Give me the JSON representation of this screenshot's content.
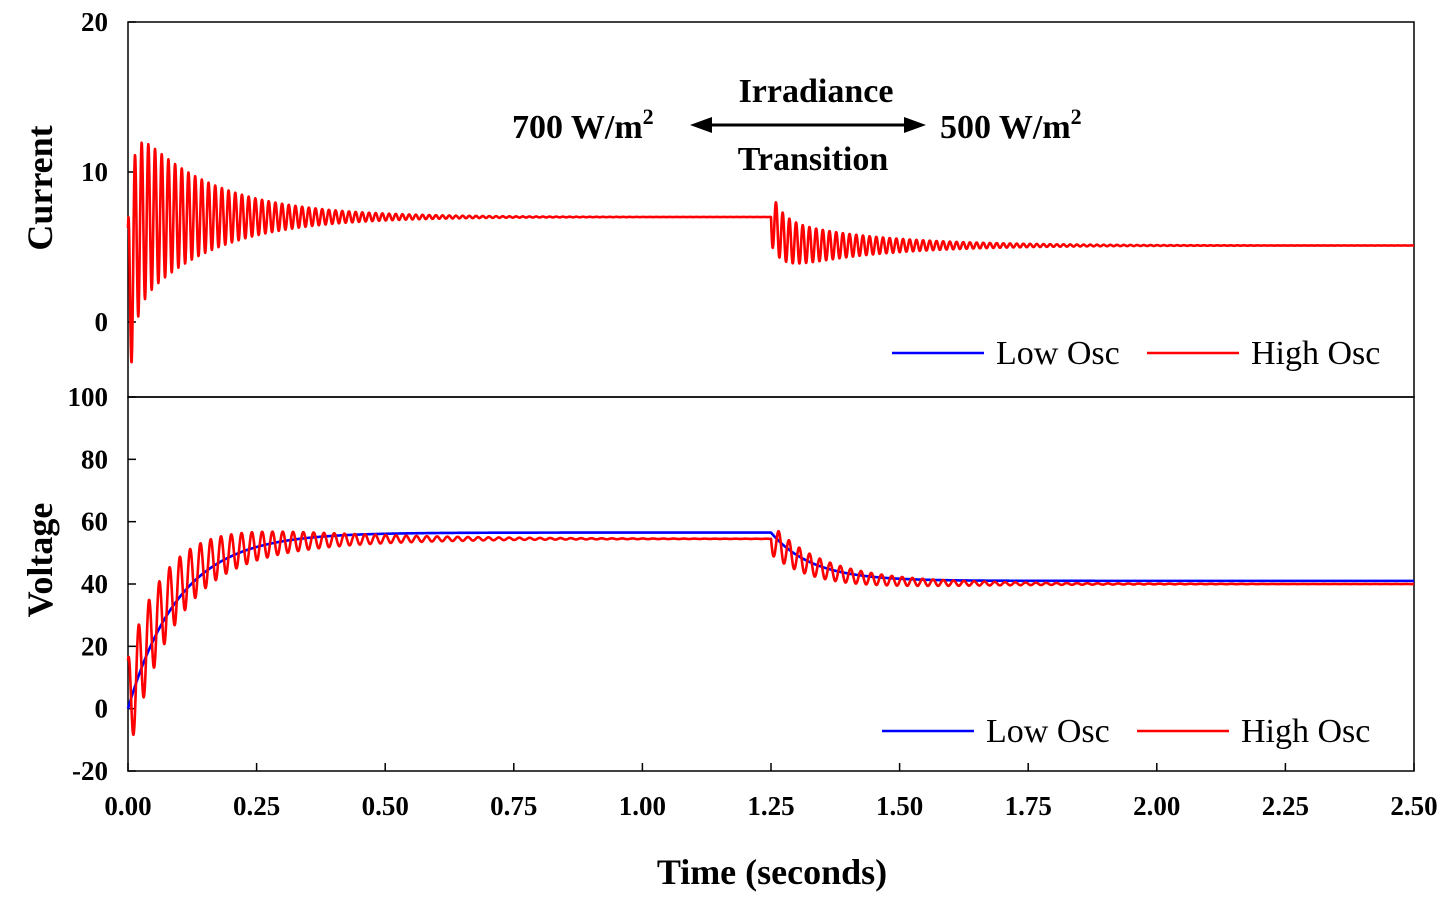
{
  "colors": {
    "low_osc": "#0000ff",
    "high_osc": "#ff0000"
  },
  "annotation": {
    "left_value": "700 W/m",
    "right_value": "500 W/m",
    "exponent": "2",
    "line1": "Irradiance",
    "line2": "Transition"
  },
  "chart_data": [
    {
      "type": "line",
      "id": "current",
      "ylabel": "Current",
      "xlim": [
        0,
        2.5
      ],
      "ylim": [
        -5,
        20
      ],
      "yticks": [
        "0",
        "10",
        "20"
      ],
      "legend": {
        "placement": "bottom-right",
        "entries": [
          "Low Osc",
          "High Osc"
        ]
      },
      "transition_time": 1.25,
      "series": [
        {
          "name": "Low Osc",
          "color": "#0000ff",
          "start": 0,
          "steady1": 6.7,
          "tau1": 0.1,
          "steady2": 4.9,
          "tau2": 0.08,
          "osc_amp1": 0.4,
          "osc_amp2": 0
        },
        {
          "name": "High Osc",
          "color": "#ff0000",
          "start": 0,
          "steady1": 7.0,
          "tau1": 0.01,
          "steady2": 5.1,
          "tau2": 0.02,
          "osc_amp1": 6.5,
          "osc_decay1": 0.15,
          "osc_amp2": 1.8,
          "osc_decay2": 0.18,
          "osc_period": 0.013
        }
      ]
    },
    {
      "type": "line",
      "id": "voltage",
      "ylabel": "Voltage",
      "xlim": [
        0,
        2.5
      ],
      "ylim": [
        -20,
        100
      ],
      "yticks": [
        "-20",
        "0",
        "20",
        "40",
        "60",
        "80",
        "100"
      ],
      "legend": {
        "placement": "bottom-right",
        "entries": [
          "Low Osc",
          "High Osc"
        ]
      },
      "transition_time": 1.25,
      "series": [
        {
          "name": "Low Osc",
          "color": "#0000ff",
          "start": 0,
          "steady1": 56.5,
          "tau1": 0.1,
          "steady2": 41,
          "tau2": 0.08,
          "osc_amp1": 0,
          "osc_amp2": 0
        },
        {
          "name": "High Osc",
          "color": "#ff0000",
          "start": 0,
          "steady1": 54.5,
          "tau1": 0.08,
          "steady2": 40,
          "tau2": 0.09,
          "osc_amp1": 16,
          "osc_decay1": 0.2,
          "osc_amp2": 5,
          "osc_decay2": 0.2,
          "osc_period": 0.02
        }
      ]
    }
  ],
  "xaxis": {
    "label": "Time (seconds)",
    "ticks": [
      "0.00",
      "0.25",
      "0.50",
      "0.75",
      "1.00",
      "1.25",
      "1.50",
      "1.75",
      "2.00",
      "2.25",
      "2.50"
    ]
  }
}
